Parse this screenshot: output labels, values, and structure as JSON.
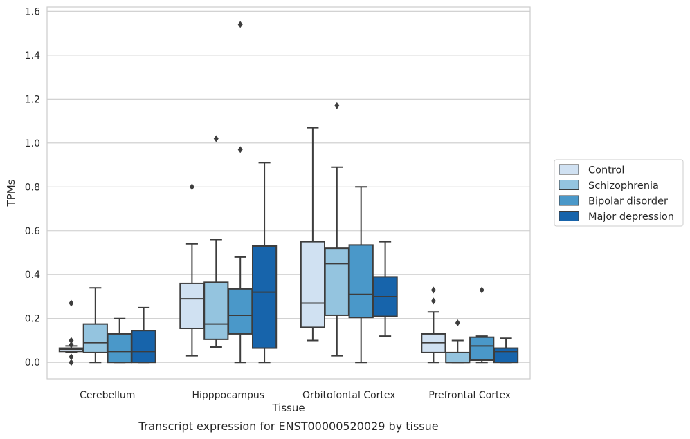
{
  "chart_data": {
    "type": "box",
    "xlabel": "Tissue",
    "ylabel": "TPMs",
    "caption": "Transcript expression for ENST00000520029 by tissue",
    "ylim": [
      -0.075,
      1.62
    ],
    "yticks": [
      "0.0",
      "0.2",
      "0.4",
      "0.6",
      "0.8",
      "1.0",
      "1.2",
      "1.4",
      "1.6"
    ],
    "grid": true,
    "legend_position": "right",
    "categories": [
      "Cerebellum",
      "Hipppocampus",
      "Orbitofontal Cortex",
      "Prefrontal Cortex"
    ],
    "series": [
      {
        "name": "Control",
        "color": "#d0e1f2",
        "boxes": [
          {
            "q1": 0.05,
            "median": 0.06,
            "q3": 0.065,
            "whisker_low": 0.045,
            "whisker_high": 0.075,
            "outliers": [
              0.27,
              0.1,
              0.08,
              0.025,
              0.0
            ]
          },
          {
            "q1": 0.155,
            "median": 0.29,
            "q3": 0.36,
            "whisker_low": 0.03,
            "whisker_high": 0.54,
            "outliers": [
              0.8
            ]
          },
          {
            "q1": 0.16,
            "median": 0.27,
            "q3": 0.55,
            "whisker_low": 0.1,
            "whisker_high": 1.07,
            "outliers": []
          },
          {
            "q1": 0.045,
            "median": 0.09,
            "q3": 0.13,
            "whisker_low": 0.0,
            "whisker_high": 0.23,
            "outliers": [
              0.33,
              0.28
            ]
          }
        ]
      },
      {
        "name": "Schizophrenia",
        "color": "#94c4df",
        "boxes": [
          {
            "q1": 0.045,
            "median": 0.09,
            "q3": 0.175,
            "whisker_low": 0.0,
            "whisker_high": 0.34,
            "outliers": []
          },
          {
            "q1": 0.105,
            "median": 0.175,
            "q3": 0.365,
            "whisker_low": 0.07,
            "whisker_high": 0.56,
            "outliers": [
              1.02
            ]
          },
          {
            "q1": 0.215,
            "median": 0.45,
            "q3": 0.52,
            "whisker_low": 0.03,
            "whisker_high": 0.89,
            "outliers": [
              1.17
            ]
          },
          {
            "q1": 0.0,
            "median": 0.0,
            "q3": 0.045,
            "whisker_low": 0.0,
            "whisker_high": 0.1,
            "outliers": [
              0.18
            ]
          }
        ]
      },
      {
        "name": "Bipolar disorder",
        "color": "#4a98c9",
        "boxes": [
          {
            "q1": 0.0,
            "median": 0.05,
            "q3": 0.13,
            "whisker_low": 0.0,
            "whisker_high": 0.2,
            "outliers": []
          },
          {
            "q1": 0.13,
            "median": 0.215,
            "q3": 0.335,
            "whisker_low": 0.0,
            "whisker_high": 0.48,
            "outliers": [
              1.54,
              0.97
            ]
          },
          {
            "q1": 0.205,
            "median": 0.31,
            "q3": 0.535,
            "whisker_low": 0.0,
            "whisker_high": 0.8,
            "outliers": []
          },
          {
            "q1": 0.01,
            "median": 0.075,
            "q3": 0.115,
            "whisker_low": 0.0,
            "whisker_high": 0.12,
            "outliers": [
              0.33
            ]
          }
        ]
      },
      {
        "name": "Major depression",
        "color": "#1764ab",
        "boxes": [
          {
            "q1": 0.0,
            "median": 0.05,
            "q3": 0.145,
            "whisker_low": 0.0,
            "whisker_high": 0.25,
            "outliers": []
          },
          {
            "q1": 0.065,
            "median": 0.32,
            "q3": 0.53,
            "whisker_low": 0.0,
            "whisker_high": 0.91,
            "outliers": []
          },
          {
            "q1": 0.21,
            "median": 0.3,
            "q3": 0.39,
            "whisker_low": 0.12,
            "whisker_high": 0.55,
            "outliers": []
          },
          {
            "q1": 0.0,
            "median": 0.05,
            "q3": 0.065,
            "whisker_low": 0.0,
            "whisker_high": 0.11,
            "outliers": []
          }
        ]
      }
    ]
  }
}
